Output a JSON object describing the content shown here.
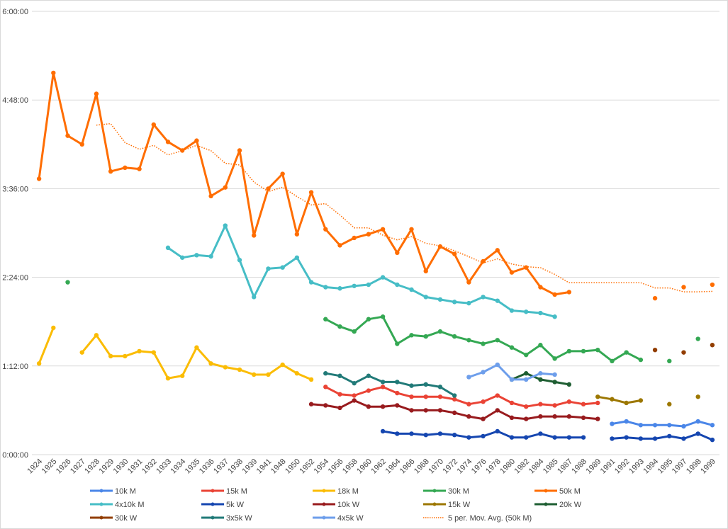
{
  "chart_data": {
    "type": "line",
    "title": "",
    "xlabel": "",
    "ylabel": "",
    "ylim": [
      "0:00:00",
      "6:00:00"
    ],
    "y_ticks": [
      "0:00:00",
      "1:12:00",
      "2:24:00",
      "3:36:00",
      "4:48:00",
      "6:00:00"
    ],
    "grid": "horizontal",
    "legend_position": "bottom",
    "categories": [
      "1924",
      "1925",
      "1926",
      "1927",
      "1928",
      "1929",
      "1930",
      "1931",
      "1932",
      "1933",
      "1934",
      "1935",
      "1936",
      "1937",
      "1938",
      "1939",
      "1941",
      "1948",
      "1950",
      "1952",
      "1954",
      "1956",
      "1958",
      "1960",
      "1962",
      "1964",
      "1966",
      "1968",
      "1970",
      "1972",
      "1974",
      "1976",
      "1978",
      "1980",
      "1982",
      "1984",
      "1985",
      "1987",
      "1988",
      "1989",
      "1991",
      "1992",
      "1993",
      "1994",
      "1995",
      "1997",
      "1998",
      "1999"
    ],
    "series": [
      {
        "name": "10k M",
        "color": "#4a86e8",
        "points": {
          "1991": "0:25:00",
          "1992": "0:27:00",
          "1993": "0:24:00",
          "1994": "0:24:00",
          "1995": "0:24:00",
          "1997": "0:23:00",
          "1998": "0:27:00",
          "1999": "0:24:00"
        }
      },
      {
        "name": "15k M",
        "color": "#ea4335",
        "points": {
          "1954": "0:55:00",
          "1956": "0:49:00",
          "1958": "0:48:00",
          "1960": "0:52:00",
          "1962": "0:55:00",
          "1964": "0:50:00",
          "1966": "0:47:00",
          "1968": "0:47:00",
          "1970": "0:47:00",
          "1972": "0:45:00",
          "1974": "0:41:00",
          "1976": "0:43:00",
          "1978": "0:48:00",
          "1980": "0:42:00",
          "1982": "0:39:00",
          "1984": "0:41:00",
          "1985": "0:40:00",
          "1987": "0:43:00",
          "1988": "0:41:00",
          "1989": "0:42:00"
        }
      },
      {
        "name": "18k M",
        "color": "#fbbc04",
        "points": {
          "1924": "1:14:00",
          "1925": "1:43:00",
          "1927": "1:23:00",
          "1928": "1:37:00",
          "1929": "1:20:00",
          "1930": "1:20:00",
          "1931": "1:24:00",
          "1932": "1:23:00",
          "1933": "1:02:00",
          "1934": "1:04:00",
          "1935": "1:27:00",
          "1936": "1:14:00",
          "1937": "1:11:00",
          "1938": "1:09:00",
          "1939": "1:05:00",
          "1941": "1:05:00",
          "1948": "1:13:00",
          "1950": "1:06:00",
          "1952": "1:01:00"
        }
      },
      {
        "name": "30k M",
        "color": "#34a853",
        "points": {
          "1926": "2:20:00",
          "1954": "1:50:00",
          "1956": "1:44:00",
          "1958": "1:40:00",
          "1960": "1:50:00",
          "1962": "1:52:00",
          "1964": "1:30:00",
          "1966": "1:37:00",
          "1968": "1:36:00",
          "1970": "1:40:00",
          "1972": "1:36:00",
          "1974": "1:33:00",
          "1976": "1:30:00",
          "1978": "1:33:00",
          "1980": "1:27:00",
          "1982": "1:21:00",
          "1984": "1:29:00",
          "1985": "1:18:00",
          "1987": "1:24:00",
          "1988": "1:24:00",
          "1989": "1:25:00",
          "1991": "1:16:00",
          "1992": "1:23:00",
          "1993": "1:17:00",
          "1995": "1:16:00",
          "1998": "1:34:00"
        }
      },
      {
        "name": "50k M",
        "color": "#ff6d01",
        "points": {
          "1924": "3:44:00",
          "1925": "5:10:00",
          "1926": "4:19:00",
          "1927": "4:12:00",
          "1928": "4:53:00",
          "1929": "3:50:00",
          "1930": "3:53:00",
          "1931": "3:52:00",
          "1932": "4:28:00",
          "1933": "4:14:00",
          "1934": "4:07:00",
          "1935": "4:15:00",
          "1936": "3:30:00",
          "1937": "3:37:00",
          "1938": "4:07:00",
          "1939": "2:58:00",
          "1941": "3:36:00",
          "1948": "3:48:00",
          "1950": "2:59:00",
          "1952": "3:33:00",
          "1954": "3:03:00",
          "1956": "2:50:00",
          "1958": "2:56:00",
          "1960": "2:59:00",
          "1962": "3:03:00",
          "1964": "2:44:00",
          "1966": "3:03:00",
          "1968": "2:29:00",
          "1970": "2:49:00",
          "1972": "2:43:00",
          "1974": "2:20:00",
          "1976": "2:37:00",
          "1978": "2:46:00",
          "1980": "2:28:00",
          "1982": "2:32:00",
          "1984": "2:16:00",
          "1985": "2:10:00",
          "1987": "2:12:00",
          "1994": "2:07:00",
          "1997": "2:16:00",
          "1999": "2:18:00"
        }
      },
      {
        "name": "4x10k M",
        "color": "#46bdc6",
        "points": {
          "1933": "2:48:00",
          "1934": "2:40:00",
          "1935": "2:42:00",
          "1936": "2:41:00",
          "1937": "3:06:00",
          "1938": "2:38:00",
          "1939": "2:08:00",
          "1941": "2:31:00",
          "1948": "2:32:00",
          "1950": "2:40:00",
          "1952": "2:20:00",
          "1954": "2:16:00",
          "1956": "2:15:00",
          "1958": "2:17:00",
          "1960": "2:18:00",
          "1962": "2:24:00",
          "1964": "2:18:00",
          "1966": "2:14:00",
          "1968": "2:08:00",
          "1970": "2:06:00",
          "1972": "2:04:00",
          "1974": "2:03:00",
          "1976": "2:08:00",
          "1978": "2:05:00",
          "1980": "1:57:00",
          "1982": "1:56:00",
          "1984": "1:55:00",
          "1985": "1:52:00"
        }
      },
      {
        "name": "5k W",
        "color": "#1546b0",
        "points": {
          "1962": "0:19:00",
          "1964": "0:17:00",
          "1966": "0:17:00",
          "1968": "0:16:00",
          "1970": "0:17:00",
          "1972": "0:16:00",
          "1974": "0:14:00",
          "1976": "0:15:00",
          "1978": "0:19:00",
          "1980": "0:14:00",
          "1982": "0:14:00",
          "1984": "0:17:00",
          "1985": "0:14:00",
          "1987": "0:14:00",
          "1988": "0:14:00",
          "1991": "0:13:00",
          "1992": "0:14:00",
          "1993": "0:13:00",
          "1994": "0:13:00",
          "1995": "0:15:00",
          "1997": "0:13:00",
          "1998": "0:17:00",
          "1999": "0:12:00"
        }
      },
      {
        "name": "10k W",
        "color": "#981b1e",
        "points": {
          "1952": "0:41:00",
          "1954": "0:40:00",
          "1956": "0:38:00",
          "1958": "0:44:00",
          "1960": "0:39:00",
          "1962": "0:39:00",
          "1964": "0:40:00",
          "1966": "0:36:00",
          "1968": "0:36:00",
          "1970": "0:36:00",
          "1972": "0:34:00",
          "1974": "0:31:00",
          "1976": "0:29:00",
          "1978": "0:36:00",
          "1980": "0:30:00",
          "1982": "0:29:00",
          "1984": "0:31:00",
          "1985": "0:31:00",
          "1987": "0:31:00",
          "1988": "0:30:00",
          "1989": "0:29:00"
        }
      },
      {
        "name": "15k W",
        "color": "#9c7700",
        "points": {
          "1989": "0:47:00",
          "1991": "0:45:00",
          "1992": "0:42:00",
          "1993": "0:44:00",
          "1995": "0:41:00",
          "1998": "0:47:00"
        }
      },
      {
        "name": "20k W",
        "color": "#1e5e32",
        "points": {
          "1980": "1:01:00",
          "1982": "1:06:00",
          "1984": "1:01:00",
          "1985": "0:59:00",
          "1987": "0:57:00"
        }
      },
      {
        "name": "30k W",
        "color": "#923d00",
        "points": {
          "1994": "1:25:00",
          "1997": "1:23:00",
          "1999": "1:29:00"
        }
      },
      {
        "name": "3x5k W",
        "color": "#217a78",
        "points": {
          "1954": "1:06:00",
          "1956": "1:04:00",
          "1958": "0:58:00",
          "1960": "1:04:00",
          "1962": "0:59:00",
          "1964": "0:59:00",
          "1966": "0:56:00",
          "1968": "0:57:00",
          "1970": "0:55:00",
          "1972": "0:48:00"
        }
      },
      {
        "name": "4x5k W",
        "color": "#6d9eeb",
        "points": {
          "1974": "1:03:00",
          "1976": "1:07:00",
          "1978": "1:13:00",
          "1980": "1:01:00",
          "1982": "1:01:00",
          "1984": "1:06:00",
          "1985": "1:05:00"
        }
      }
    ],
    "trendline": {
      "name": "5 per. Mov. Avg. (50k M)",
      "type": "moving_average",
      "period": 5,
      "source_series": "50k M",
      "color": "#ff6d01",
      "style": "dotted"
    }
  }
}
